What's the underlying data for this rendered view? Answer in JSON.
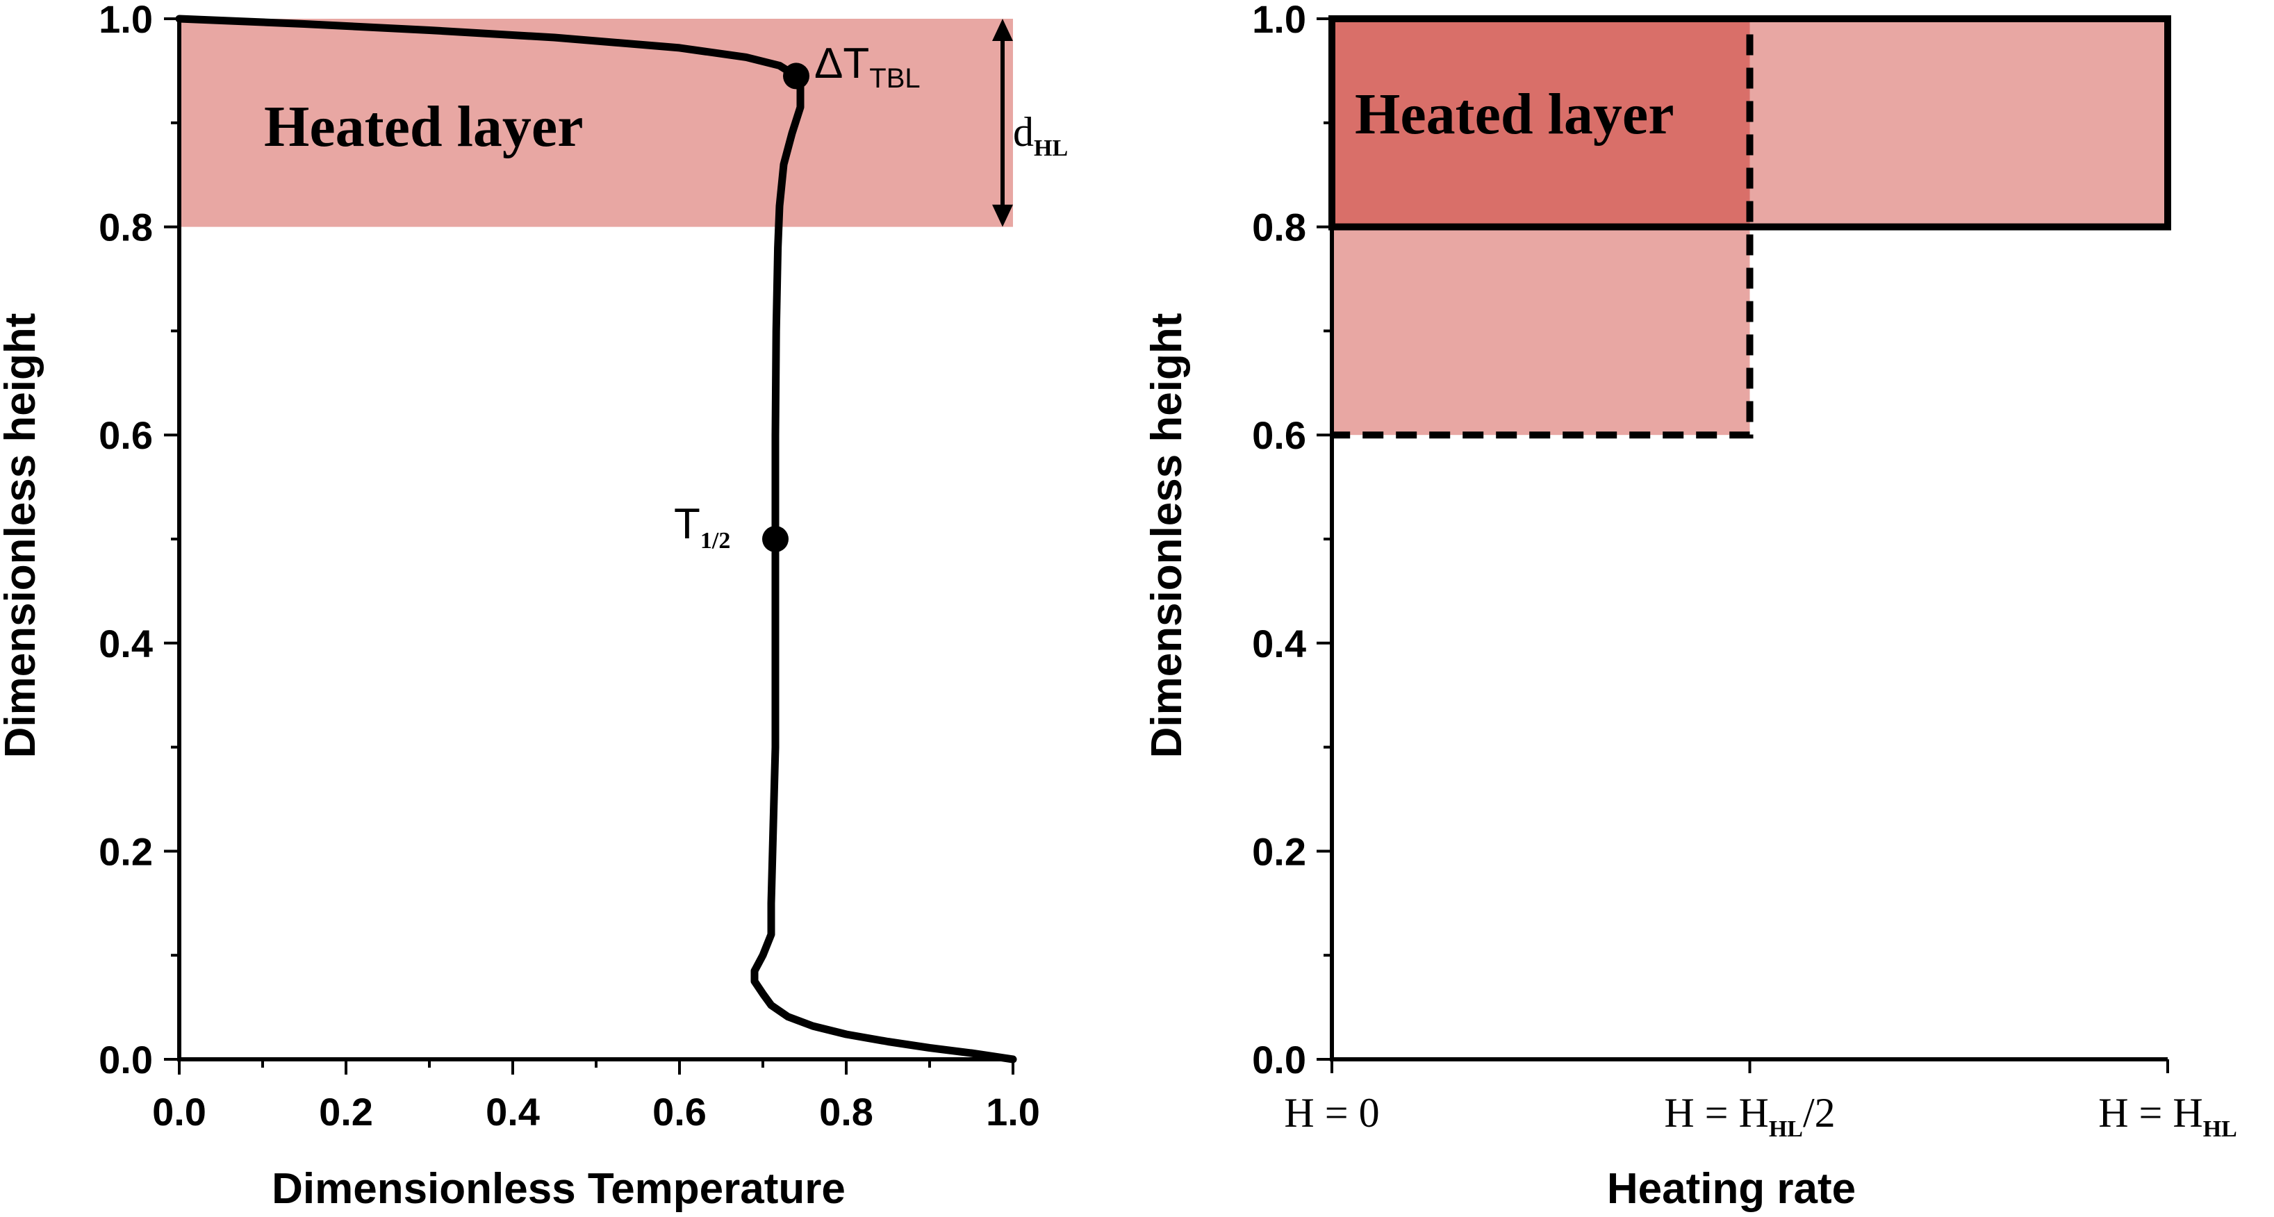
{
  "chart_data": [
    {
      "type": "line",
      "xlabel": "Dimensionless Temperature",
      "ylabel": "Dimensionless height",
      "xlim": [
        0,
        1
      ],
      "ylim": [
        0,
        1
      ],
      "x_ticks": [
        "0.0",
        "0.2",
        "0.4",
        "0.6",
        "0.8",
        "1.0"
      ],
      "y_ticks": [
        "0.0",
        "0.2",
        "0.4",
        "0.6",
        "0.8",
        "1.0"
      ],
      "grid": false,
      "series": [
        {
          "x": [
            1.0,
            0.95,
            0.9,
            0.85,
            0.8,
            0.76,
            0.73,
            0.71,
            0.7,
            0.69,
            0.69,
            0.7,
            0.71,
            0.71,
            0.715,
            0.715,
            0.715,
            0.715,
            0.716,
            0.718,
            0.72,
            0.725,
            0.735,
            0.745,
            0.745,
            0.74,
            0.72,
            0.68,
            0.6,
            0.45,
            0.3,
            0.15,
            0.0
          ],
          "y": [
            0.0,
            0.006,
            0.011,
            0.017,
            0.024,
            0.032,
            0.041,
            0.052,
            0.063,
            0.075,
            0.085,
            0.1,
            0.12,
            0.15,
            0.3,
            0.4,
            0.5,
            0.6,
            0.7,
            0.78,
            0.82,
            0.86,
            0.89,
            0.915,
            0.935,
            0.945,
            0.955,
            0.963,
            0.972,
            0.982,
            0.989,
            0.995,
            1.0
          ]
        }
      ],
      "shaded_region": {
        "y": [
          0.8,
          1.0
        ],
        "label": "Heated layer"
      },
      "points": [
        {
          "name": "T_1/2",
          "x": 0.715,
          "y": 0.5,
          "label": "T",
          "sub": "1/2"
        },
        {
          "name": "dT_TBL",
          "x": 0.74,
          "y": 0.945,
          "label": "ΔT",
          "sub": "TBL"
        }
      ],
      "arrow": {
        "y": [
          0.8,
          1.0
        ],
        "label": "d",
        "sub": "HL"
      }
    },
    {
      "type": "area",
      "xlabel": "Heating rate",
      "ylabel": "Dimensionless height",
      "xlim": [
        0,
        1
      ],
      "ylim": [
        0,
        1
      ],
      "y_ticks": [
        "0.0",
        "0.2",
        "0.4",
        "0.6",
        "0.8",
        "1.0"
      ],
      "x_ticks": [
        {
          "pre": "H = 0",
          "sub": "",
          "post": ""
        },
        {
          "pre": "H = H",
          "sub": "HL",
          "post": "/2"
        },
        {
          "pre": "H = H",
          "sub": "HL",
          "post": ""
        }
      ],
      "grid": false,
      "regions": [
        {
          "name": "full-rate layer",
          "x": [
            0,
            1.0
          ],
          "y": [
            0.8,
            1.0
          ],
          "style": "solid"
        },
        {
          "name": "half-rate layer",
          "x": [
            0,
            0.5
          ],
          "y": [
            0.6,
            1.0
          ],
          "style": "dashed"
        }
      ],
      "region_label": "Heated layer"
    }
  ],
  "colors": {
    "fill": "#e8a7a3",
    "overlap": "#d96f69",
    "line": "#000000"
  }
}
